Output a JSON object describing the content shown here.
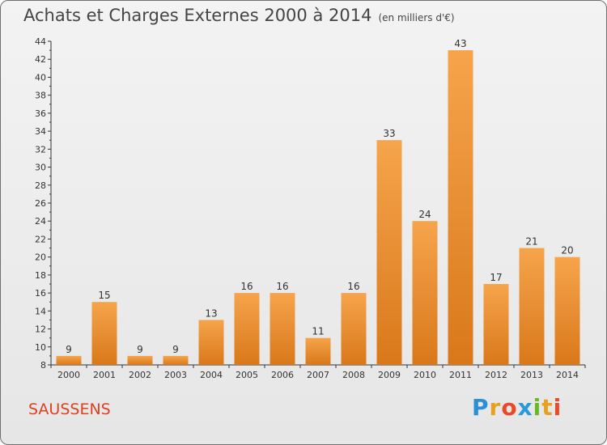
{
  "title": "Achats et Charges Externes 2000 à 2014",
  "units": "(en milliers d'€)",
  "place": "SAUSSENS",
  "logo": {
    "letters": [
      "P",
      "r",
      "o",
      "x",
      "i",
      "t",
      "i"
    ],
    "colors": [
      "#2a8fd6",
      "#e8a020",
      "#e84a2a",
      "#2a9ad6",
      "#6ab82a",
      "#e8a020",
      "#e84a2a"
    ]
  },
  "chart_data": {
    "type": "bar",
    "title": "Achats et Charges Externes 2000 à 2014",
    "categories": [
      "2000",
      "2001",
      "2002",
      "2003",
      "2004",
      "2005",
      "2006",
      "2007",
      "2008",
      "2009",
      "2010",
      "2011",
      "2012",
      "2013",
      "2014"
    ],
    "values": [
      9,
      15,
      9,
      9,
      13,
      16,
      16,
      11,
      16,
      33,
      24,
      43,
      17,
      21,
      20
    ],
    "ylim": [
      8,
      44
    ],
    "yticks": [
      8,
      10,
      12,
      14,
      16,
      18,
      20,
      22,
      24,
      26,
      28,
      30,
      32,
      34,
      36,
      38,
      40,
      42,
      44
    ],
    "grid": false,
    "bar_color": "#f08a24"
  }
}
